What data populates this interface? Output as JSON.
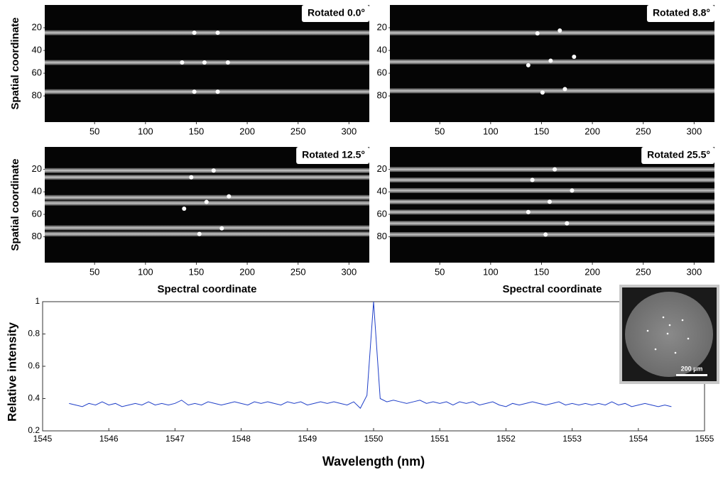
{
  "chart_data": [
    {
      "type": "image",
      "title": "Rotated 0.0°",
      "ylabel": "Spatial coordinate",
      "xlim": [
        1,
        320
      ],
      "ylim": [
        0,
        103
      ],
      "xticks": [
        50,
        100,
        150,
        200,
        250,
        300
      ],
      "yticks": [
        20,
        40,
        60,
        80
      ],
      "stripes": [
        24.4,
        50.6,
        76.3
      ],
      "spots": {
        "x": [
          148,
          171,
          136,
          158,
          181,
          148,
          171
        ],
        "y": [
          24.4,
          24.4,
          50.6,
          50.6,
          50.6,
          76.3,
          76.3
        ]
      }
    },
    {
      "type": "image",
      "title": "Rotated 8.8°",
      "xlim": [
        1,
        320
      ],
      "ylim": [
        0,
        103
      ],
      "xticks": [
        50,
        100,
        150,
        200,
        250,
        300
      ],
      "yticks": [
        20,
        40,
        60,
        80
      ],
      "stripes": [
        24.5,
        50,
        75.5
      ],
      "spots": {
        "x": [
          146,
          168,
          137,
          159,
          182,
          151,
          173
        ],
        "y": [
          25,
          22.5,
          53,
          49,
          45.6,
          77,
          74
        ]
      }
    },
    {
      "type": "image",
      "title": "Rotated 12.5°",
      "ylabel": "Spatial coordinate",
      "xlabel": "Spectral coordinate",
      "xlim": [
        1,
        320
      ],
      "ylim": [
        0,
        103
      ],
      "xticks": [
        50,
        100,
        150,
        200,
        250,
        300
      ],
      "yticks": [
        20,
        40,
        60,
        80
      ],
      "stripes": [
        21,
        27,
        45,
        50,
        72,
        77.5
      ],
      "spots": {
        "x": [
          167,
          145,
          182,
          160,
          138,
          175,
          153
        ],
        "y": [
          21,
          27,
          44,
          49,
          55,
          72.5,
          77.5
        ]
      }
    },
    {
      "type": "image",
      "title": "Rotated 25.5°",
      "xlabel": "Spectral coordinate",
      "xlim": [
        1,
        320
      ],
      "ylim": [
        0,
        103
      ],
      "xticks": [
        50,
        100,
        150,
        200,
        250,
        300
      ],
      "yticks": [
        20,
        40,
        60,
        80
      ],
      "stripes": [
        20,
        29.4,
        38.8,
        48.8,
        58,
        68,
        78
      ],
      "spots": {
        "x": [
          163,
          141,
          180,
          158,
          137,
          175,
          154
        ],
        "y": [
          20,
          29.4,
          38.8,
          48.8,
          58,
          68,
          78
        ]
      }
    },
    {
      "type": "line",
      "xlabel": "Wavelength (nm)",
      "ylabel": "Relative intensity",
      "xlim": [
        1545,
        1555
      ],
      "ylim": [
        0.2,
        1
      ],
      "xticks": [
        1545,
        1546,
        1547,
        1548,
        1549,
        1550,
        1551,
        1552,
        1553,
        1554,
        1555
      ],
      "yticks": [
        0.2,
        0.4,
        0.6,
        0.8,
        1
      ],
      "color": "#1f3fc8",
      "x": [
        1545.4,
        1545.5,
        1545.6,
        1545.7,
        1545.8,
        1545.9,
        1546.0,
        1546.1,
        1546.2,
        1546.3,
        1546.4,
        1546.5,
        1546.6,
        1546.7,
        1546.8,
        1546.9,
        1547.0,
        1547.1,
        1547.2,
        1547.3,
        1547.4,
        1547.5,
        1547.6,
        1547.7,
        1547.8,
        1547.9,
        1548.0,
        1548.1,
        1548.2,
        1548.3,
        1548.4,
        1548.5,
        1548.6,
        1548.7,
        1548.8,
        1548.9,
        1549.0,
        1549.1,
        1549.2,
        1549.3,
        1549.4,
        1549.5,
        1549.6,
        1549.7,
        1549.8,
        1549.9,
        1550.0,
        1550.1,
        1550.2,
        1550.3,
        1550.4,
        1550.5,
        1550.6,
        1550.7,
        1550.8,
        1550.9,
        1551.0,
        1551.1,
        1551.2,
        1551.3,
        1551.4,
        1551.5,
        1551.6,
        1551.7,
        1551.8,
        1551.9,
        1552.0,
        1552.1,
        1552.2,
        1552.3,
        1552.4,
        1552.5,
        1552.6,
        1552.7,
        1552.8,
        1552.9,
        1553.0,
        1553.1,
        1553.2,
        1553.3,
        1553.4,
        1553.5,
        1553.6,
        1553.7,
        1553.8,
        1553.9,
        1554.0,
        1554.1,
        1554.2,
        1554.3,
        1554.4,
        1554.5
      ],
      "values": [
        0.37,
        0.36,
        0.35,
        0.37,
        0.36,
        0.38,
        0.36,
        0.37,
        0.35,
        0.36,
        0.37,
        0.36,
        0.38,
        0.36,
        0.37,
        0.36,
        0.37,
        0.39,
        0.36,
        0.37,
        0.36,
        0.38,
        0.37,
        0.36,
        0.37,
        0.38,
        0.37,
        0.36,
        0.38,
        0.37,
        0.38,
        0.37,
        0.36,
        0.38,
        0.37,
        0.38,
        0.36,
        0.37,
        0.38,
        0.37,
        0.38,
        0.37,
        0.36,
        0.38,
        0.34,
        0.42,
        1.0,
        0.4,
        0.38,
        0.39,
        0.38,
        0.37,
        0.38,
        0.39,
        0.37,
        0.38,
        0.37,
        0.38,
        0.36,
        0.38,
        0.37,
        0.38,
        0.36,
        0.37,
        0.38,
        0.36,
        0.35,
        0.37,
        0.36,
        0.37,
        0.38,
        0.37,
        0.36,
        0.37,
        0.38,
        0.36,
        0.37,
        0.36,
        0.37,
        0.36,
        0.37,
        0.36,
        0.38,
        0.36,
        0.37,
        0.35,
        0.36,
        0.37,
        0.36,
        0.35,
        0.36,
        0.35
      ]
    }
  ],
  "inset": {
    "scale_label": "200 µm"
  }
}
